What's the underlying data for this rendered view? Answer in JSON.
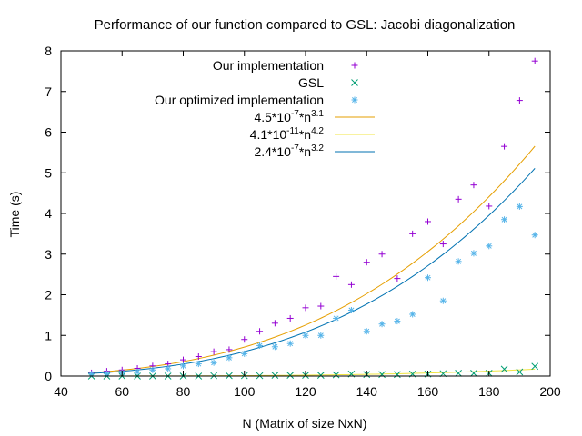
{
  "chart_data": {
    "type": "scatter",
    "title": "Performance of our function compared to GSL: Jacobi diagonalization",
    "xlabel": "N (Matrix of size NxN)",
    "ylabel": "Time (s)",
    "xlim": [
      40,
      200
    ],
    "ylim": [
      0,
      8
    ],
    "xticks": [
      40,
      60,
      80,
      100,
      120,
      140,
      160,
      180,
      200
    ],
    "yticks": [
      0,
      1,
      2,
      3,
      4,
      5,
      6,
      7,
      8
    ],
    "grid": false,
    "legend_position": "top-right",
    "x": [
      50,
      55,
      60,
      65,
      70,
      75,
      80,
      85,
      90,
      95,
      100,
      105,
      110,
      115,
      120,
      125,
      130,
      135,
      140,
      145,
      150,
      155,
      160,
      165,
      170,
      175,
      180,
      185,
      190,
      195
    ],
    "series": [
      {
        "name": "Our implementation",
        "kind": "points",
        "marker": "plus",
        "color": "#9400d3",
        "y": [
          0.08,
          0.12,
          0.15,
          0.19,
          0.25,
          0.3,
          0.4,
          0.48,
          0.6,
          0.65,
          0.9,
          1.1,
          1.3,
          1.42,
          1.68,
          1.72,
          2.45,
          2.25,
          2.8,
          3.0,
          2.4,
          3.5,
          3.8,
          3.25,
          4.35,
          4.7,
          4.18,
          5.65,
          6.78,
          7.75
        ]
      },
      {
        "name": "GSL",
        "kind": "points",
        "marker": "cross",
        "color": "#009e73",
        "y": [
          0.0,
          0.0,
          0.0,
          0.0,
          0.0,
          0.0,
          0.0,
          0.0,
          0.01,
          0.01,
          0.01,
          0.01,
          0.02,
          0.02,
          0.02,
          0.02,
          0.03,
          0.05,
          0.04,
          0.04,
          0.04,
          0.05,
          0.05,
          0.06,
          0.07,
          0.07,
          0.07,
          0.17,
          0.1,
          0.24
        ]
      },
      {
        "name": "Our optimized implementation",
        "kind": "points",
        "marker": "star",
        "color": "#56b4e9",
        "y": [
          0.05,
          0.06,
          0.08,
          0.1,
          0.15,
          0.18,
          0.25,
          0.3,
          0.33,
          0.45,
          0.55,
          0.75,
          0.72,
          0.8,
          1.0,
          1.0,
          1.42,
          1.62,
          1.1,
          1.28,
          1.35,
          1.52,
          2.42,
          1.85,
          2.82,
          3.02,
          3.2,
          3.85,
          4.17,
          3.47
        ]
      },
      {
        "name": "4.5*10⁻⁷*n³·¹",
        "legend_base": "4.5*10",
        "legend_exp": "-7",
        "legend_mid": "*n",
        "legend_exp2": "3.1",
        "kind": "line",
        "color": "#e69f00",
        "coef": 4.5e-07,
        "power": 3.1
      },
      {
        "name": "4.1*10⁻¹¹*n⁴·²",
        "legend_base": "4.1*10",
        "legend_exp": "-11",
        "legend_mid": "*n",
        "legend_exp2": "4.2",
        "kind": "line",
        "color": "#f0e442",
        "coef": 4.1e-11,
        "power": 4.2
      },
      {
        "name": "2.4*10⁻⁷*n³·²",
        "legend_base": "2.4*10",
        "legend_exp": "-7",
        "legend_mid": "*n",
        "legend_exp2": "3.2",
        "kind": "line",
        "color": "#0072b2",
        "coef": 2.4e-07,
        "power": 3.2
      }
    ]
  }
}
